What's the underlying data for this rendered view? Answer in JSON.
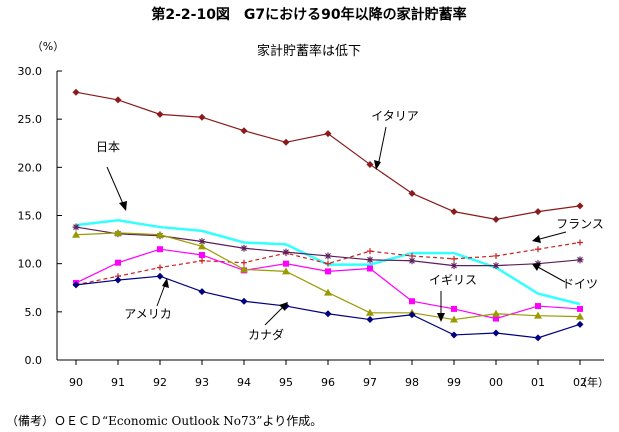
{
  "figure_title": "第2-2-10図　G7における90年以降の家計貯蓄率",
  "source_note": "（備考）ＯＥＣＤ“Economic Outlook No73”より作成。",
  "chart_data": {
    "type": "line",
    "title": "家計貯蓄率は低下",
    "ylabel": "（%）",
    "xlabel": "（年）",
    "categories": [
      "90",
      "91",
      "92",
      "93",
      "94",
      "95",
      "96",
      "97",
      "98",
      "99",
      "00",
      "01",
      "02"
    ],
    "yticks": [
      "0.0",
      "5.0",
      "10.0",
      "15.0",
      "20.0",
      "25.0",
      "30.0"
    ],
    "ylim": [
      0,
      30
    ],
    "grid": false,
    "series": [
      {
        "name": "イタリア",
        "color": "#8b1a1a",
        "marker": "diamond",
        "dash": false,
        "values": [
          27.8,
          27.0,
          25.5,
          25.2,
          23.8,
          22.6,
          23.5,
          20.3,
          17.3,
          15.4,
          14.6,
          15.4,
          16.0
        ]
      },
      {
        "name": "日本",
        "color": "#33ffff",
        "marker": "none",
        "dash": false,
        "values": [
          14.0,
          14.5,
          13.8,
          13.4,
          12.2,
          12.0,
          9.9,
          9.9,
          11.1,
          11.1,
          9.6,
          6.9,
          5.8
        ]
      },
      {
        "name": "フランス",
        "color": "#cc2222",
        "marker": "plus",
        "dash": true,
        "values": [
          7.8,
          8.7,
          9.6,
          10.3,
          10.1,
          11.1,
          10.0,
          11.3,
          10.8,
          10.5,
          10.8,
          11.5,
          12.2
        ]
      },
      {
        "name": "ドイツ",
        "color": "#5b1f5b",
        "marker": "star",
        "dash": false,
        "values": [
          13.8,
          13.1,
          12.9,
          12.3,
          11.6,
          11.2,
          10.8,
          10.4,
          10.3,
          9.8,
          9.8,
          10.0,
          10.4
        ]
      },
      {
        "name": "イギリス",
        "color": "#ff00ff",
        "marker": "square",
        "dash": false,
        "values": [
          8.0,
          10.1,
          11.5,
          10.9,
          9.3,
          10.0,
          9.2,
          9.5,
          6.1,
          5.3,
          4.3,
          5.6,
          5.3
        ]
      },
      {
        "name": "カナダ",
        "color": "#9a9a00",
        "marker": "triangle",
        "dash": false,
        "values": [
          13.0,
          13.2,
          13.0,
          11.8,
          9.4,
          9.2,
          7.0,
          4.9,
          4.9,
          4.2,
          4.8,
          4.6,
          4.5
        ]
      },
      {
        "name": "アメリカ",
        "color": "#000080",
        "marker": "diamond",
        "dash": false,
        "values": [
          7.8,
          8.3,
          8.7,
          7.1,
          6.1,
          5.6,
          4.8,
          4.2,
          4.7,
          2.6,
          2.8,
          2.3,
          3.7
        ]
      }
    ]
  }
}
